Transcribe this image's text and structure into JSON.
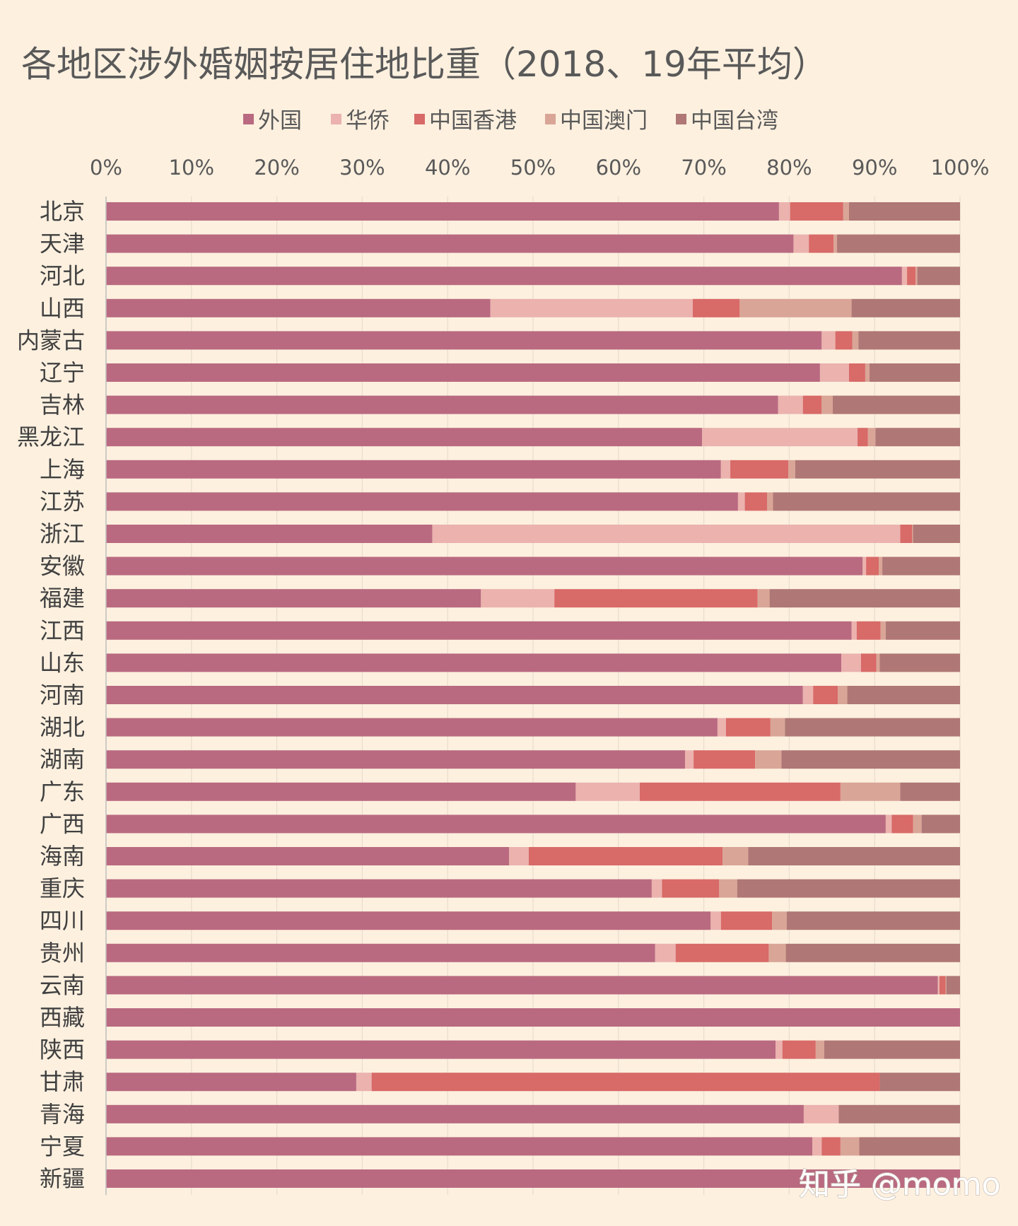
{
  "chart_data": {
    "type": "bar",
    "orientation": "horizontal",
    "stacked": "percent",
    "title": "各地区涉外婚姻按居住地比重（2018、19年平均）",
    "xlabel": "",
    "ylabel": "",
    "xlim": [
      0,
      100
    ],
    "x_ticks": [
      "0%",
      "10%",
      "20%",
      "30%",
      "40%",
      "50%",
      "60%",
      "70%",
      "80%",
      "90%",
      "100%"
    ],
    "grid": "vertical",
    "legend_position": "top",
    "categories": [
      "北京",
      "天津",
      "河北",
      "山西",
      "内蒙古",
      "辽宁",
      "吉林",
      "黑龙江",
      "上海",
      "江苏",
      "浙江",
      "安徽",
      "福建",
      "江西",
      "山东",
      "河南",
      "湖北",
      "湖南",
      "广东",
      "广西",
      "海南",
      "重庆",
      "四川",
      "贵州",
      "云南",
      "西藏",
      "陕西",
      "甘肃",
      "青海",
      "宁夏",
      "新疆"
    ],
    "series": [
      {
        "name": "外国",
        "color": "#b96a80",
        "values": [
          78.8,
          80.5,
          93.2,
          45.0,
          83.8,
          83.6,
          78.7,
          69.8,
          72.0,
          74.0,
          38.2,
          88.6,
          43.9,
          87.3,
          86.1,
          81.6,
          71.6,
          67.8,
          55.0,
          91.3,
          47.2,
          63.9,
          70.8,
          64.3,
          97.4,
          100.0,
          78.4,
          29.3,
          81.7,
          82.7,
          100.0
        ]
      },
      {
        "name": "华侨",
        "color": "#ebb2ae",
        "values": [
          1.3,
          1.8,
          0.6,
          23.7,
          1.6,
          3.4,
          2.9,
          18.2,
          1.1,
          0.8,
          54.8,
          0.4,
          8.6,
          0.6,
          2.3,
          1.2,
          1.0,
          1.0,
          7.5,
          0.7,
          2.3,
          1.2,
          1.2,
          2.4,
          0.2,
          0.0,
          0.8,
          1.8,
          4.1,
          1.1,
          0.0
        ]
      },
      {
        "name": "中国香港",
        "color": "#d86a68",
        "values": [
          6.2,
          2.9,
          1.0,
          5.5,
          2.0,
          1.9,
          2.2,
          1.2,
          6.8,
          2.6,
          1.4,
          1.5,
          23.8,
          2.8,
          1.8,
          2.9,
          5.2,
          7.2,
          23.5,
          2.5,
          22.7,
          6.7,
          6.0,
          10.9,
          0.7,
          0.0,
          3.9,
          59.5,
          0.0,
          2.2,
          0.0
        ]
      },
      {
        "name": "中国澳门",
        "color": "#d9a597",
        "values": [
          0.7,
          0.4,
          0.2,
          13.1,
          0.7,
          0.5,
          1.3,
          0.9,
          0.8,
          0.7,
          0.1,
          0.4,
          1.4,
          0.6,
          0.4,
          1.1,
          1.7,
          3.1,
          7.0,
          1.0,
          3.0,
          2.1,
          1.7,
          2.0,
          0.1,
          0.0,
          1.0,
          0.0,
          0.0,
          2.2,
          0.0
        ]
      },
      {
        "name": "中国台湾",
        "color": "#af7775",
        "values": [
          13.0,
          14.4,
          5.0,
          12.7,
          11.9,
          10.6,
          14.9,
          9.9,
          19.3,
          21.9,
          5.5,
          9.1,
          22.3,
          8.7,
          9.4,
          13.2,
          20.5,
          20.9,
          7.0,
          4.5,
          24.8,
          26.1,
          20.3,
          20.4,
          1.6,
          0.0,
          15.9,
          9.4,
          14.2,
          11.8,
          0.0
        ]
      }
    ],
    "watermark": "知乎 @momo"
  }
}
